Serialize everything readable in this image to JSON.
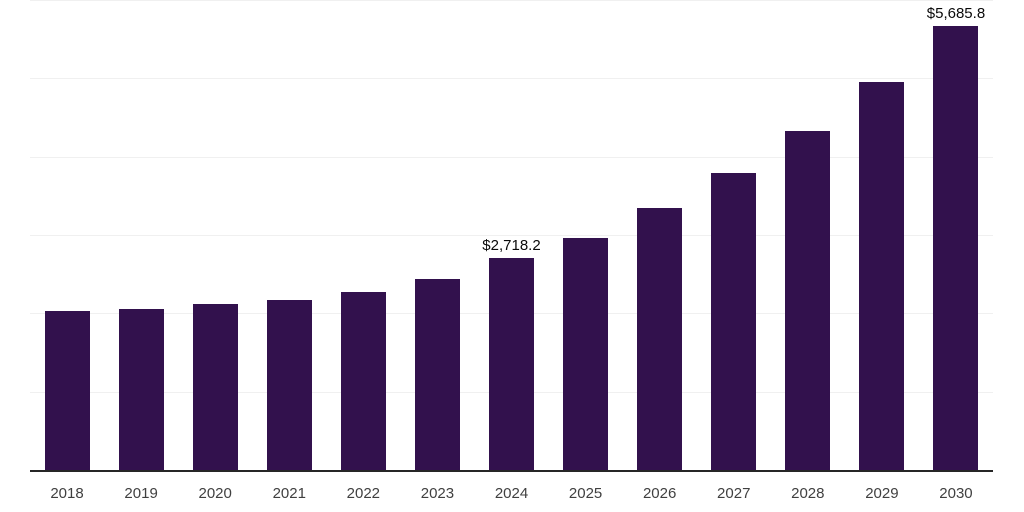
{
  "chart_data": {
    "type": "bar",
    "title": "",
    "xlabel": "",
    "ylabel": "",
    "categories": [
      "2018",
      "2019",
      "2020",
      "2021",
      "2022",
      "2023",
      "2024",
      "2025",
      "2026",
      "2027",
      "2028",
      "2029",
      "2030"
    ],
    "values": [
      2042,
      2064,
      2128,
      2179,
      2281,
      2447,
      2718.2,
      2975,
      3353,
      3800,
      4337,
      4960,
      5685.8
    ],
    "value_labels": [
      "",
      "",
      "",
      "",
      "",
      "",
      "$2,718.2",
      "",
      "",
      "",
      "",
      "",
      "$5,685.8"
    ],
    "ylim": [
      0,
      6000
    ],
    "gridline_step": 1000,
    "grid": "horizontal",
    "legend": "none",
    "y_axis_labels_visible": false,
    "colors": {
      "bar": "#32114d",
      "gridline": "#f0f0f0",
      "axis_line": "#262626",
      "tick_label": "#404040",
      "value_label": "#0a0a0a",
      "background": "#ffffff"
    }
  }
}
